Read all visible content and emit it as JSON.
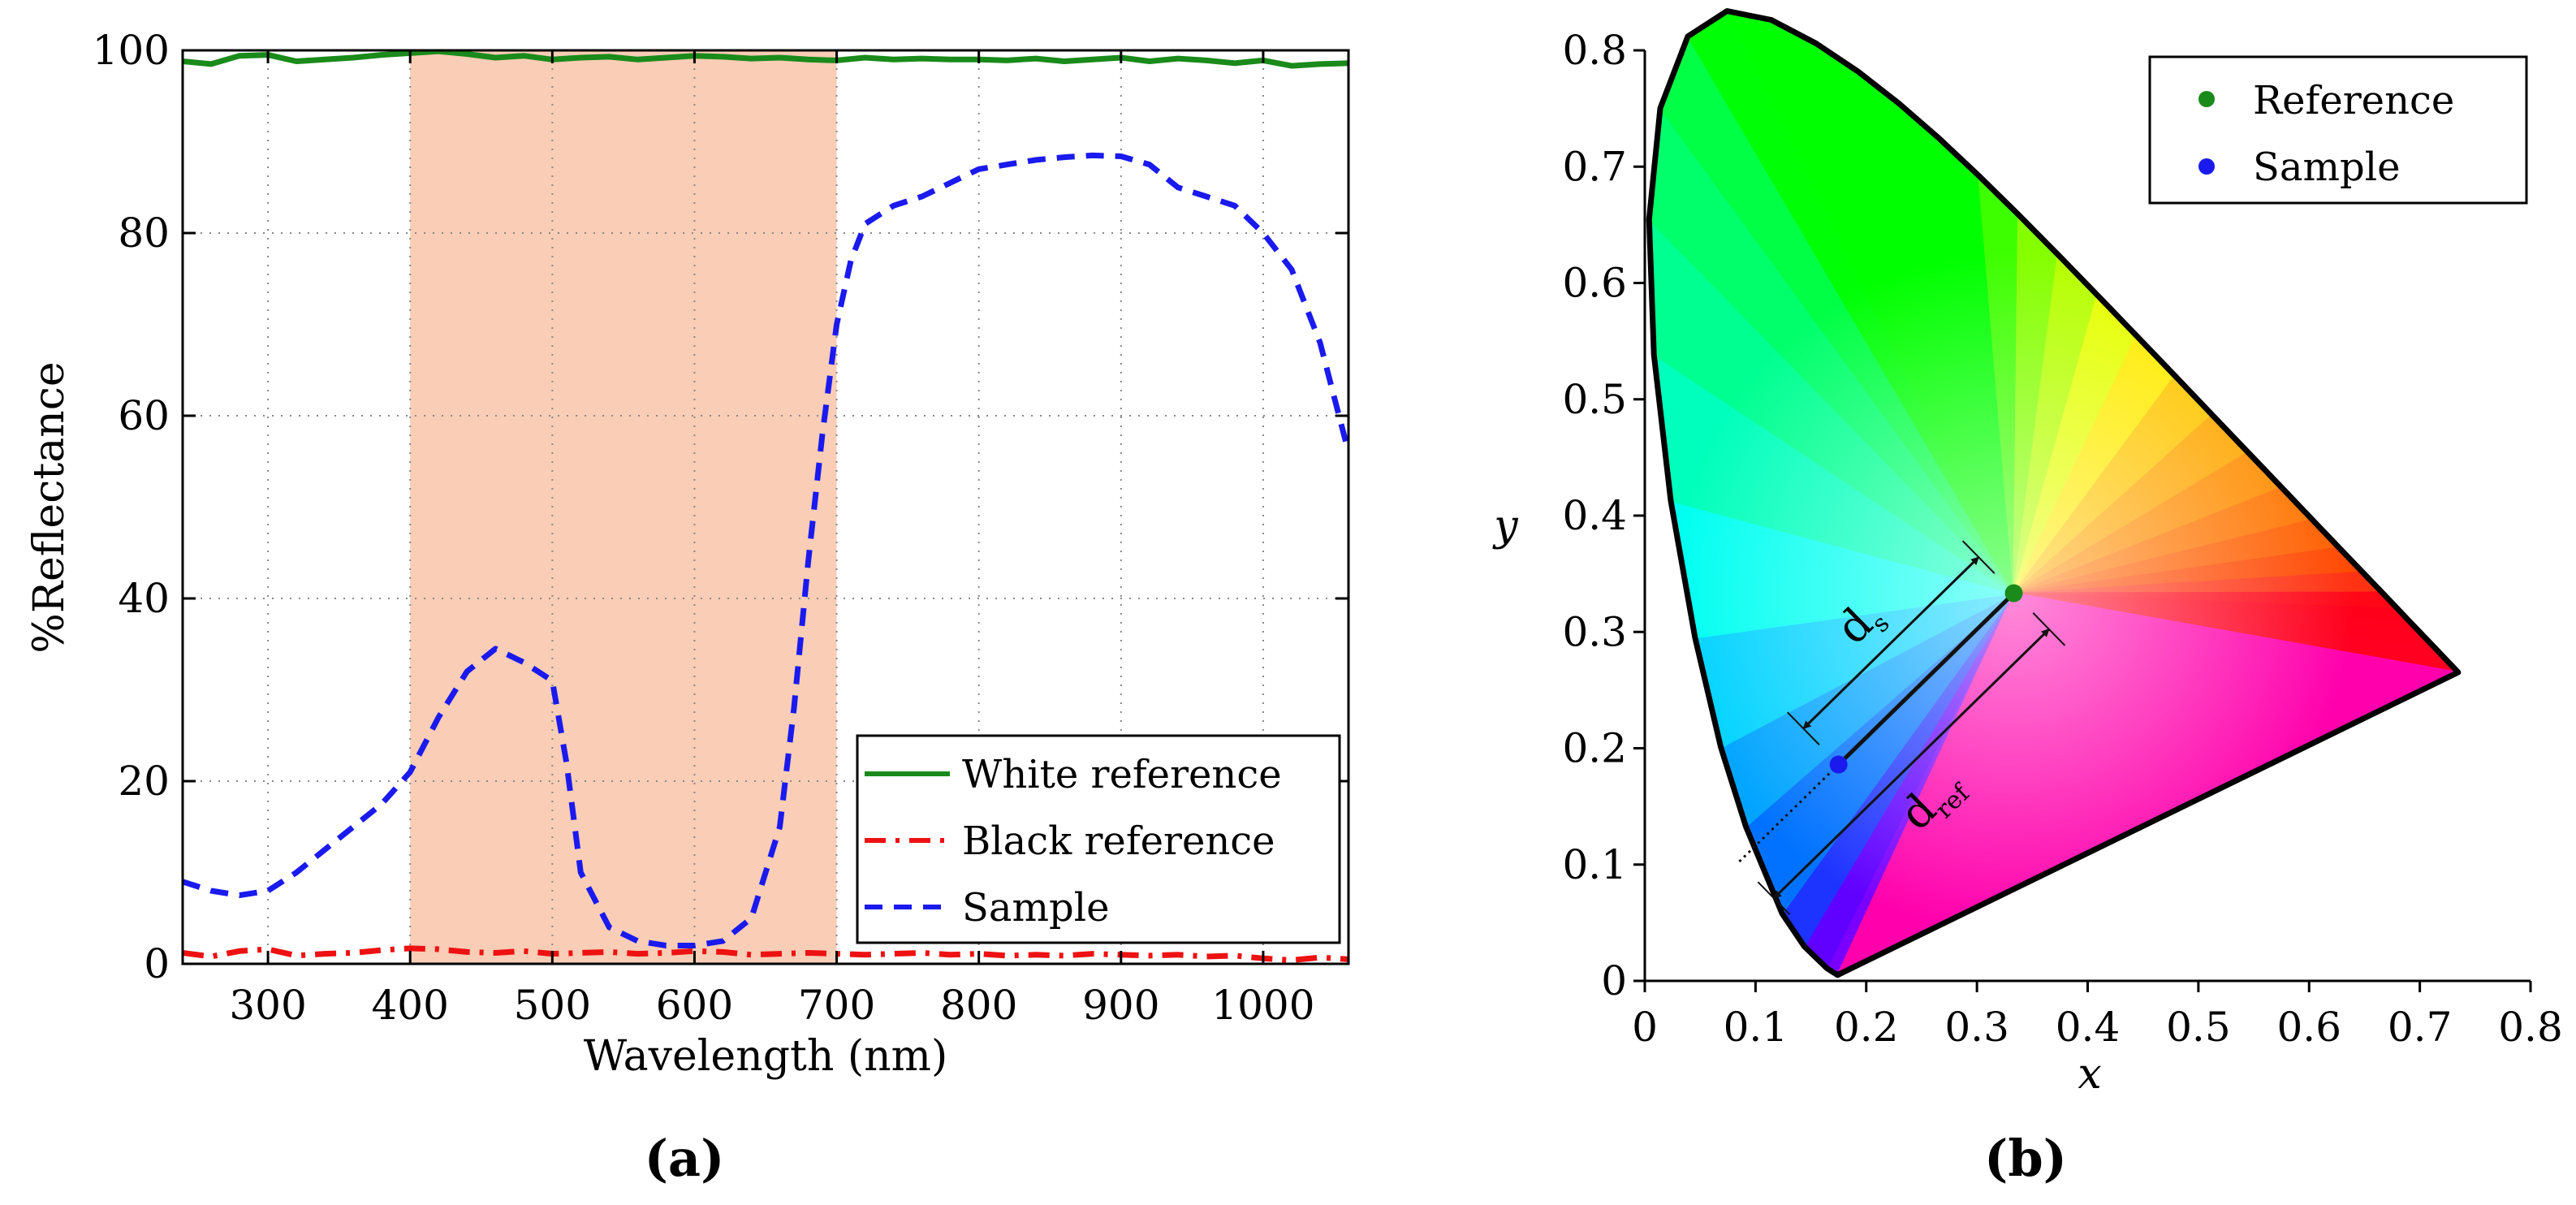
{
  "chart_data": [
    {
      "type": "line",
      "panel_label": "(a)",
      "xlabel": "Wavelength (nm)",
      "ylabel": "%Reflectance",
      "xlim": [
        240,
        1060
      ],
      "ylim": [
        0,
        100
      ],
      "xticks": [
        300,
        400,
        500,
        600,
        700,
        800,
        900,
        1000
      ],
      "yticks": [
        0,
        20,
        40,
        60,
        80,
        100
      ],
      "grid": true,
      "shaded_band": {
        "x_start": 400,
        "x_end": 700,
        "color": "#f9cdb6"
      },
      "legend": {
        "placement": "bottom-right"
      },
      "series": [
        {
          "name": "White reference",
          "color": "#1a8a1a",
          "style": "solid",
          "x": [
            240,
            260,
            280,
            300,
            320,
            340,
            360,
            380,
            400,
            420,
            440,
            460,
            480,
            500,
            520,
            540,
            560,
            580,
            600,
            620,
            640,
            660,
            680,
            700,
            720,
            740,
            760,
            780,
            800,
            820,
            840,
            860,
            880,
            900,
            920,
            940,
            960,
            980,
            1000,
            1020,
            1040,
            1060
          ],
          "values": [
            98.8,
            98.5,
            99.4,
            99.5,
            98.8,
            99.0,
            99.2,
            99.5,
            99.7,
            99.9,
            99.6,
            99.2,
            99.4,
            99.0,
            99.2,
            99.3,
            99.0,
            99.2,
            99.4,
            99.3,
            99.1,
            99.2,
            99.0,
            98.9,
            99.2,
            99.0,
            99.1,
            99.0,
            99.0,
            98.9,
            99.1,
            98.8,
            99.0,
            99.2,
            98.8,
            99.1,
            98.9,
            98.6,
            98.9,
            98.3,
            98.5,
            98.6
          ]
        },
        {
          "name": "Black reference",
          "color": "#ee1111",
          "style": "dash-dot",
          "x": [
            240,
            260,
            280,
            300,
            320,
            340,
            360,
            380,
            400,
            420,
            440,
            460,
            480,
            500,
            520,
            540,
            560,
            580,
            600,
            620,
            640,
            660,
            680,
            700,
            720,
            740,
            760,
            780,
            800,
            820,
            840,
            860,
            880,
            900,
            920,
            940,
            960,
            980,
            1000,
            1020,
            1040,
            1060
          ],
          "values": [
            1.2,
            0.8,
            1.4,
            1.6,
            0.9,
            1.1,
            1.2,
            1.5,
            1.7,
            1.6,
            1.3,
            1.2,
            1.4,
            1.1,
            1.2,
            1.3,
            1.1,
            1.2,
            1.4,
            1.3,
            1.0,
            1.1,
            1.2,
            1.1,
            1.0,
            1.1,
            1.2,
            1.0,
            1.1,
            0.9,
            1.0,
            0.9,
            1.1,
            1.0,
            0.9,
            1.0,
            0.8,
            0.9,
            0.6,
            0.4,
            0.7,
            0.5
          ]
        },
        {
          "name": "Sample",
          "color": "#1a1aee",
          "style": "dashed",
          "x": [
            240,
            260,
            280,
            300,
            320,
            340,
            360,
            380,
            400,
            420,
            440,
            460,
            480,
            500,
            510,
            520,
            540,
            560,
            580,
            600,
            620,
            640,
            660,
            670,
            680,
            690,
            700,
            710,
            720,
            740,
            760,
            780,
            800,
            820,
            840,
            860,
            880,
            900,
            920,
            940,
            960,
            980,
            1000,
            1020,
            1040,
            1060
          ],
          "values": [
            9,
            8,
            7.5,
            8,
            10,
            12.5,
            15,
            17.5,
            21,
            27,
            32,
            34.5,
            33,
            31,
            22,
            10,
            4,
            2.5,
            2,
            2,
            2.5,
            5,
            15,
            28,
            44,
            58,
            70,
            77,
            81,
            83,
            84,
            85.5,
            87,
            87.5,
            88,
            88.3,
            88.5,
            88.4,
            87.5,
            85,
            84,
            83,
            80,
            76,
            68,
            56
          ]
        }
      ]
    },
    {
      "type": "scatter",
      "panel_label": "(b)",
      "xlabel": "x",
      "ylabel": "y",
      "xlim": [
        0,
        0.8
      ],
      "ylim": [
        0,
        0.8
      ],
      "xticks": [
        "0",
        "0.1",
        "0.2",
        "0.3",
        "0.4",
        "0.5",
        "0.6",
        "0.7",
        "0.8"
      ],
      "yticks": [
        "0",
        "0.1",
        "0.2",
        "0.3",
        "0.4",
        "0.5",
        "0.6",
        "0.7",
        "0.8"
      ],
      "legend": {
        "placement": "top-right"
      },
      "gamut_vertices_xy": [
        [
          0.1741,
          0.005
        ],
        [
          0.1644,
          0.0109
        ],
        [
          0.144,
          0.0297
        ],
        [
          0.1241,
          0.0578
        ],
        [
          0.0913,
          0.1327
        ],
        [
          0.0687,
          0.2007
        ],
        [
          0.0454,
          0.295
        ],
        [
          0.0235,
          0.4127
        ],
        [
          0.0082,
          0.5384
        ],
        [
          0.0039,
          0.6548
        ],
        [
          0.0139,
          0.7502
        ],
        [
          0.0389,
          0.812
        ],
        [
          0.0743,
          0.8338
        ],
        [
          0.1142,
          0.8262
        ],
        [
          0.1547,
          0.8059
        ],
        [
          0.1929,
          0.7816
        ],
        [
          0.2296,
          0.7543
        ],
        [
          0.2658,
          0.7243
        ],
        [
          0.3016,
          0.6923
        ],
        [
          0.3373,
          0.6589
        ],
        [
          0.3731,
          0.6245
        ],
        [
          0.4087,
          0.5896
        ],
        [
          0.4441,
          0.5547
        ],
        [
          0.4788,
          0.5202
        ],
        [
          0.5125,
          0.4866
        ],
        [
          0.5448,
          0.4544
        ],
        [
          0.5752,
          0.4242
        ],
        [
          0.6029,
          0.3965
        ],
        [
          0.627,
          0.3725
        ],
        [
          0.6482,
          0.3514
        ],
        [
          0.6658,
          0.334
        ],
        [
          0.6801,
          0.3197
        ],
        [
          0.6915,
          0.3083
        ],
        [
          0.7006,
          0.2993
        ],
        [
          0.714,
          0.2859
        ],
        [
          0.7347,
          0.2653
        ]
      ],
      "points": [
        {
          "name": "Reference",
          "color": "#1a8a1a",
          "x": 0.3333,
          "y": 0.3333
        },
        {
          "name": "Sample",
          "color": "#1a1aee",
          "x": 0.175,
          "y": 0.186
        }
      ],
      "annotations": [
        {
          "label": "d",
          "subscript": "s"
        },
        {
          "label": "d",
          "subscript": "ref"
        }
      ]
    }
  ]
}
